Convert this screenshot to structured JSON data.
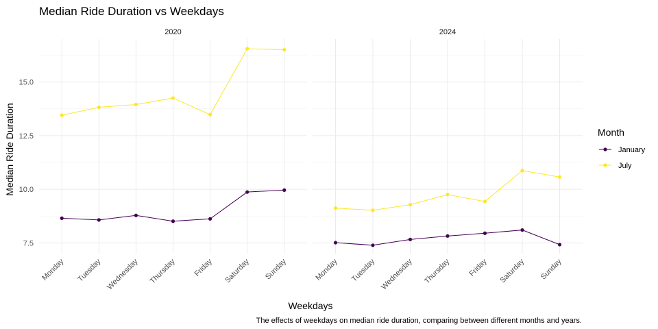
{
  "chart_data": {
    "type": "line",
    "title": "Median Ride Duration vs Weekdays",
    "xlabel": "Weekdays",
    "ylabel": "Median Ride Duration",
    "caption": "The effects of weekdays on median ride duration, comparing between different months and years.",
    "categories": [
      "Monday",
      "Tuesday",
      "Wednesday",
      "Thursday",
      "Friday",
      "Saturday",
      "Sunday"
    ],
    "y_ticks": [
      7.5,
      10.0,
      12.5,
      15.0
    ],
    "y_tick_labels": [
      "7.5",
      "10.0",
      "12.5",
      "15.0"
    ],
    "ylim": [
      7.0,
      17.0
    ],
    "grid": true,
    "legend": {
      "title": "Month",
      "placement": "right",
      "items": [
        {
          "label": "January",
          "color": "#440154"
        },
        {
          "label": "July",
          "color": "#fde725"
        }
      ]
    },
    "facets": [
      {
        "name": "2020",
        "series": [
          {
            "name": "January",
            "color": "#440154",
            "values": [
              8.65,
              8.57,
              8.78,
              8.51,
              8.62,
              9.87,
              9.96
            ]
          },
          {
            "name": "July",
            "color": "#fde725",
            "values": [
              13.45,
              13.82,
              13.95,
              14.25,
              13.48,
              16.55,
              16.5
            ]
          }
        ]
      },
      {
        "name": "2024",
        "series": [
          {
            "name": "January",
            "color": "#440154",
            "values": [
              7.51,
              7.39,
              7.66,
              7.82,
              7.95,
              8.1,
              7.42
            ]
          },
          {
            "name": "July",
            "color": "#fde725",
            "values": [
              9.12,
              9.02,
              9.28,
              9.75,
              9.43,
              10.87,
              10.57
            ]
          }
        ]
      }
    ]
  }
}
